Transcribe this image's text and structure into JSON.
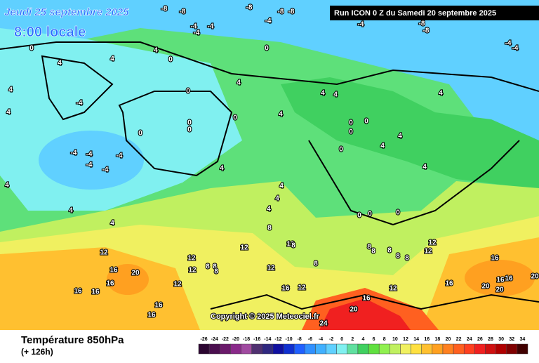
{
  "header": {
    "date": "Jeudi 25 septembre 2025",
    "time": "8:00 locale",
    "run": "Run ICON 0 Z du Samedi 20 septembre 2025"
  },
  "copyright": "Copyright © 2025 Meteociel.fr",
  "footer": {
    "title": "Température 850hPa",
    "lead": "(+ 126h)"
  },
  "scale": {
    "labels": [
      "-26",
      "-24",
      "-22",
      "-20",
      "-18",
      "-16",
      "-14",
      "-12",
      "-10",
      "-8",
      "-6",
      "-4",
      "-2",
      "0",
      "2",
      "4",
      "6",
      "8",
      "10",
      "12",
      "14",
      "16",
      "18",
      "20",
      "22",
      "24",
      "26",
      "28",
      "30",
      "32",
      "34"
    ],
    "colors": [
      "#2b0530",
      "#4b0f4f",
      "#6a1a6a",
      "#8a2a8a",
      "#a04aa0",
      "#503070",
      "#302880",
      "#1010a0",
      "#1030d0",
      "#2060ff",
      "#3090ff",
      "#40b0ff",
      "#60d0ff",
      "#80f0f0",
      "#60e0a0",
      "#40d060",
      "#60e040",
      "#90f050",
      "#c0f060",
      "#f0f060",
      "#ffe040",
      "#ffc030",
      "#ffa020",
      "#ff8020",
      "#ff6020",
      "#ff4020",
      "#f02020",
      "#d01010",
      "#b00000",
      "#800000",
      "#400000"
    ]
  },
  "map_labels": [
    "-8",
    "-8",
    "-8",
    "-8",
    "-8",
    "-8",
    "-8",
    "-4",
    "-4",
    "-4",
    "-4",
    "-4",
    "-4",
    "-4",
    "0",
    "0",
    "0",
    "0",
    "0",
    "0",
    "0",
    "0",
    "0",
    "0",
    "0",
    "0",
    "0",
    "0",
    "0",
    "4",
    "4",
    "4",
    "4",
    "4",
    "4",
    "4",
    "4",
    "4",
    "4",
    "4",
    "4",
    "4",
    "4",
    "4",
    "4",
    "4",
    "4",
    "4",
    "4",
    "-4",
    "-4",
    "-4",
    "-4",
    "-4",
    "-4",
    "12",
    "12",
    "12",
    "12",
    "12",
    "12",
    "12",
    "12",
    "12",
    "12",
    "12",
    "16",
    "16",
    "16",
    "16",
    "16",
    "16",
    "16",
    "16",
    "16",
    "16",
    "16",
    "16",
    "20",
    "20",
    "20",
    "20",
    "20",
    "8",
    "8",
    "8",
    "8",
    "8",
    "8",
    "8",
    "8",
    "8",
    "8",
    "8",
    "24"
  ]
}
